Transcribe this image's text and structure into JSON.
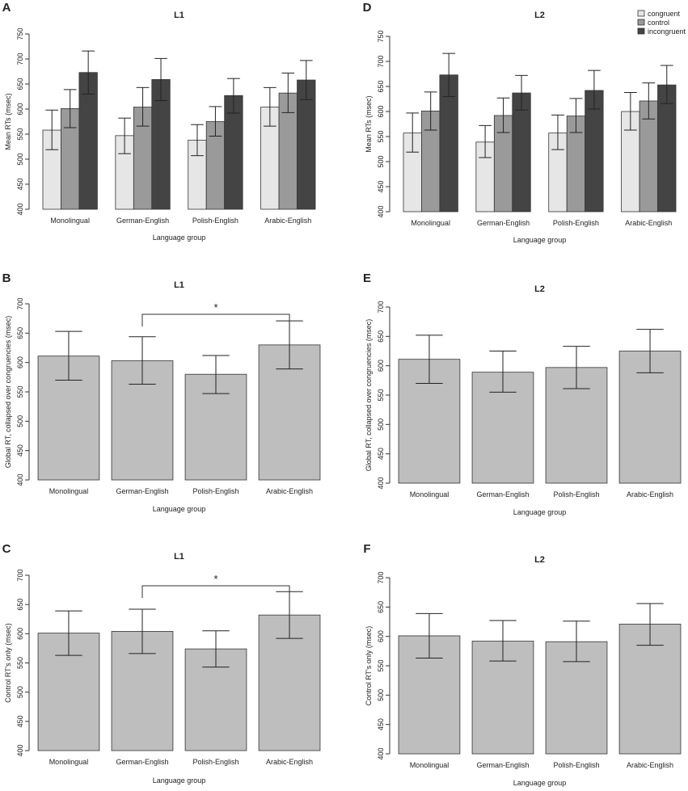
{
  "figure": {
    "legend": [
      {
        "key": "congruent",
        "label": "congruent",
        "color": "#e6e6e6"
      },
      {
        "key": "control",
        "label": "control",
        "color": "#9a9a9a"
      },
      {
        "key": "incongruent",
        "label": "incongruent",
        "color": "#444444"
      }
    ],
    "single_bar_color": "#bebebe"
  },
  "chart_data": [
    {
      "id": "A",
      "letter": "A",
      "type": "bar",
      "title": "L1",
      "xlabel": "Language group",
      "ylabel": "Mean RTs (msec)",
      "ylim": [
        400,
        750
      ],
      "yticks": [
        400,
        450,
        500,
        550,
        600,
        650,
        700,
        750
      ],
      "categories": [
        "Monolingual",
        "German-English",
        "Polish-English",
        "Arabic-English"
      ],
      "series": [
        {
          "name": "congruent",
          "values": [
            558,
            547,
            538,
            604
          ],
          "err_low": [
            519,
            511,
            507,
            566
          ],
          "err_high": [
            598,
            582,
            569,
            643
          ]
        },
        {
          "name": "control",
          "values": [
            601,
            604,
            575,
            632
          ],
          "err_low": [
            563,
            566,
            546,
            593
          ],
          "err_high": [
            639,
            643,
            605,
            672
          ]
        },
        {
          "name": "incongruent",
          "values": [
            673,
            659,
            627,
            658
          ],
          "err_low": [
            630,
            617,
            592,
            619
          ],
          "err_high": [
            716,
            701,
            661,
            697
          ]
        }
      ]
    },
    {
      "id": "D",
      "letter": "D",
      "type": "bar",
      "title": "L2",
      "xlabel": "Language group",
      "ylabel": "Mean RTs (msec)",
      "ylim": [
        400,
        750
      ],
      "yticks": [
        400,
        450,
        500,
        550,
        600,
        650,
        700,
        750
      ],
      "categories": [
        "Monolingual",
        "German-English",
        "Polish-English",
        "Arabic-English"
      ],
      "legend": true,
      "series": [
        {
          "name": "congruent",
          "values": [
            557,
            539,
            557,
            600
          ],
          "err_low": [
            519,
            508,
            524,
            563
          ],
          "err_high": [
            597,
            572,
            593,
            638
          ]
        },
        {
          "name": "control",
          "values": [
            601,
            592,
            591,
            621
          ],
          "err_low": [
            563,
            558,
            558,
            585
          ],
          "err_high": [
            639,
            627,
            626,
            657
          ]
        },
        {
          "name": "incongruent",
          "values": [
            673,
            637,
            642,
            653
          ],
          "err_low": [
            630,
            603,
            605,
            616
          ],
          "err_high": [
            716,
            672,
            682,
            692
          ]
        }
      ]
    },
    {
      "id": "B",
      "letter": "B",
      "type": "bar",
      "title": "L1",
      "xlabel": "Language group",
      "ylabel": "Global RT, collapsed over congruencies (msec)",
      "ylim": [
        400,
        700
      ],
      "yticks": [
        400,
        450,
        500,
        550,
        600,
        650,
        700
      ],
      "categories": [
        "Monolingual",
        "German-English",
        "Polish-English",
        "Arabic-English"
      ],
      "values": [
        611,
        603,
        580,
        630
      ],
      "err_low": [
        570,
        563,
        547,
        589
      ],
      "err_high": [
        653,
        644,
        612,
        671
      ],
      "significance": {
        "from": 1,
        "to": 3,
        "label": "*"
      }
    },
    {
      "id": "E",
      "letter": "E",
      "type": "bar",
      "title": "L2",
      "xlabel": "Language group",
      "ylabel": "Global RT, collapsed over congruencies (msec)",
      "ylim": [
        400,
        700
      ],
      "yticks": [
        400,
        450,
        500,
        550,
        600,
        650,
        700
      ],
      "categories": [
        "Monolingual",
        "German-English",
        "Polish-English",
        "Arabic-English"
      ],
      "values": [
        611,
        589,
        597,
        625
      ],
      "err_low": [
        570,
        555,
        561,
        588
      ],
      "err_high": [
        652,
        625,
        633,
        662
      ]
    },
    {
      "id": "C",
      "letter": "C",
      "type": "bar",
      "title": "L1",
      "xlabel": "Language group",
      "ylabel": "Control RT's only (msec)",
      "ylim": [
        400,
        700
      ],
      "yticks": [
        400,
        450,
        500,
        550,
        600,
        650,
        700
      ],
      "categories": [
        "Monolingual",
        "German-English",
        "Polish-English",
        "Arabic-English"
      ],
      "values": [
        601,
        604,
        574,
        632
      ],
      "err_low": [
        563,
        566,
        543,
        592
      ],
      "err_high": [
        639,
        642,
        605,
        672
      ],
      "significance": {
        "from": 1,
        "to": 3,
        "label": "*"
      }
    },
    {
      "id": "F",
      "letter": "F",
      "type": "bar",
      "title": "L2",
      "xlabel": "Language group",
      "ylabel": "Control RT's only (msec)",
      "ylim": [
        400,
        700
      ],
      "yticks": [
        400,
        450,
        500,
        550,
        600,
        650,
        700
      ],
      "categories": [
        "Monolingual",
        "German-English",
        "Polish-English",
        "Arabic-English"
      ],
      "values": [
        601,
        592,
        591,
        621
      ],
      "err_low": [
        563,
        558,
        557,
        585
      ],
      "err_high": [
        639,
        627,
        626,
        656
      ]
    }
  ]
}
